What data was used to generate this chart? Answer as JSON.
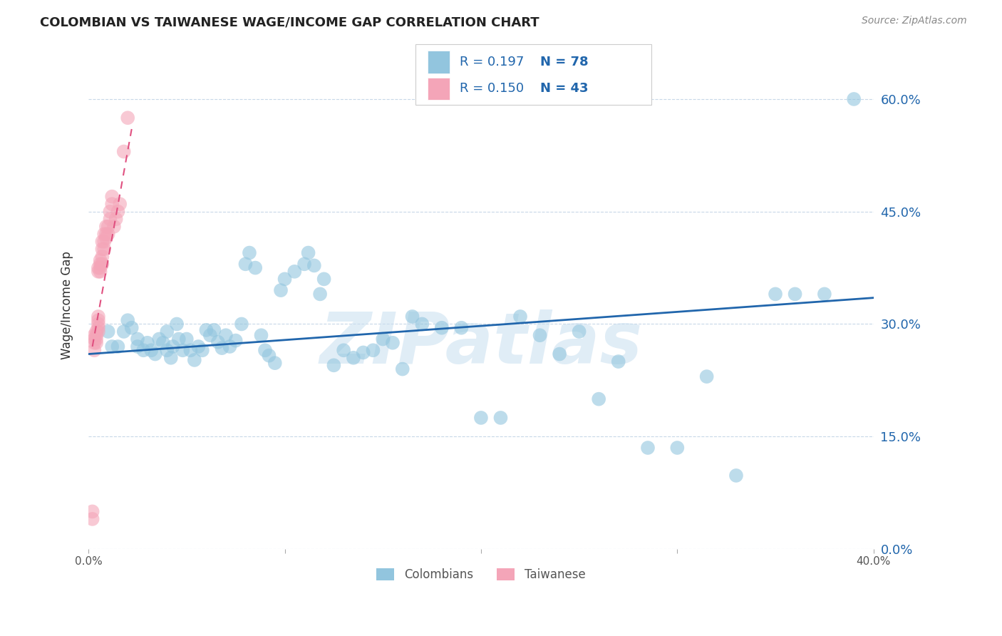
{
  "title": "COLOMBIAN VS TAIWANESE WAGE/INCOME GAP CORRELATION CHART",
  "source": "Source: ZipAtlas.com",
  "ylabel": "Wage/Income Gap",
  "watermark": "ZIPatlas",
  "xlim": [
    0.0,
    0.4
  ],
  "ylim": [
    0.0,
    0.65
  ],
  "yticks": [
    0.0,
    0.15,
    0.3,
    0.45,
    0.6
  ],
  "ytick_labels": [
    "0.0%",
    "15.0%",
    "30.0%",
    "45.0%",
    "60.0%"
  ],
  "xticks": [
    0.0,
    0.1,
    0.2,
    0.3,
    0.4
  ],
  "xtick_labels_show": [
    "0.0%",
    "40.0%"
  ],
  "legend_R_blue": "0.197",
  "legend_N_blue": "78",
  "legend_R_pink": "0.150",
  "legend_N_pink": "43",
  "legend_label_blue": "Colombians",
  "legend_label_pink": "Taiwanese",
  "blue_color": "#92c5de",
  "pink_color": "#f4a5b8",
  "blue_line_color": "#2166ac",
  "pink_line_color": "#e05080",
  "blue_trend_x0": 0.0,
  "blue_trend_x1": 0.4,
  "blue_trend_y0": 0.26,
  "blue_trend_y1": 0.335,
  "pink_trend_x0": 0.002,
  "pink_trend_x1": 0.022,
  "pink_trend_y0": 0.27,
  "pink_trend_y1": 0.56,
  "colombians_x": [
    0.01,
    0.012,
    0.015,
    0.018,
    0.02,
    0.022,
    0.025,
    0.025,
    0.028,
    0.03,
    0.032,
    0.034,
    0.036,
    0.038,
    0.04,
    0.04,
    0.042,
    0.043,
    0.045,
    0.046,
    0.048,
    0.05,
    0.052,
    0.054,
    0.056,
    0.058,
    0.06,
    0.062,
    0.064,
    0.066,
    0.068,
    0.07,
    0.072,
    0.075,
    0.078,
    0.08,
    0.082,
    0.085,
    0.088,
    0.09,
    0.092,
    0.095,
    0.098,
    0.1,
    0.105,
    0.11,
    0.112,
    0.115,
    0.118,
    0.12,
    0.125,
    0.13,
    0.135,
    0.14,
    0.145,
    0.15,
    0.155,
    0.16,
    0.165,
    0.17,
    0.18,
    0.19,
    0.2,
    0.21,
    0.22,
    0.23,
    0.24,
    0.25,
    0.26,
    0.27,
    0.285,
    0.3,
    0.315,
    0.33,
    0.35,
    0.36,
    0.375,
    0.39
  ],
  "colombians_y": [
    0.29,
    0.27,
    0.27,
    0.29,
    0.305,
    0.295,
    0.28,
    0.27,
    0.265,
    0.275,
    0.265,
    0.26,
    0.28,
    0.275,
    0.29,
    0.265,
    0.255,
    0.27,
    0.3,
    0.28,
    0.265,
    0.28,
    0.265,
    0.252,
    0.27,
    0.265,
    0.292,
    0.285,
    0.292,
    0.276,
    0.268,
    0.285,
    0.27,
    0.278,
    0.3,
    0.38,
    0.395,
    0.375,
    0.285,
    0.265,
    0.258,
    0.248,
    0.345,
    0.36,
    0.37,
    0.38,
    0.395,
    0.378,
    0.34,
    0.36,
    0.245,
    0.265,
    0.255,
    0.262,
    0.265,
    0.28,
    0.275,
    0.24,
    0.31,
    0.3,
    0.295,
    0.295,
    0.175,
    0.175,
    0.31,
    0.285,
    0.26,
    0.29,
    0.2,
    0.25,
    0.135,
    0.135,
    0.23,
    0.098,
    0.34,
    0.34,
    0.34,
    0.6
  ],
  "taiwanese_x": [
    0.002,
    0.002,
    0.003,
    0.003,
    0.003,
    0.003,
    0.004,
    0.004,
    0.004,
    0.004,
    0.005,
    0.005,
    0.005,
    0.005,
    0.005,
    0.005,
    0.005,
    0.006,
    0.006,
    0.006,
    0.006,
    0.007,
    0.007,
    0.007,
    0.007,
    0.008,
    0.008,
    0.008,
    0.009,
    0.009,
    0.009,
    0.01,
    0.01,
    0.011,
    0.011,
    0.012,
    0.012,
    0.013,
    0.014,
    0.015,
    0.016,
    0.018,
    0.02
  ],
  "taiwanese_y": [
    0.04,
    0.05,
    0.265,
    0.275,
    0.28,
    0.285,
    0.275,
    0.28,
    0.285,
    0.29,
    0.29,
    0.295,
    0.3,
    0.305,
    0.31,
    0.37,
    0.375,
    0.37,
    0.375,
    0.38,
    0.385,
    0.38,
    0.39,
    0.4,
    0.41,
    0.4,
    0.41,
    0.42,
    0.415,
    0.42,
    0.43,
    0.42,
    0.43,
    0.44,
    0.45,
    0.46,
    0.47,
    0.43,
    0.44,
    0.45,
    0.46,
    0.53,
    0.575
  ]
}
